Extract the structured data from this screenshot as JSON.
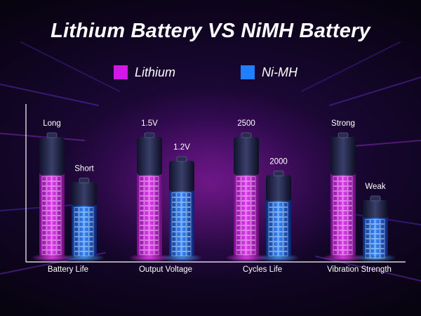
{
  "title": "Lithium Battery VS NiMH Battery",
  "legend": [
    {
      "label": "Lithium",
      "color": "#d018e8"
    },
    {
      "label": "Ni-MH",
      "color": "#1f7fff"
    }
  ],
  "chart_data": {
    "type": "bar",
    "title": "Lithium Battery VS NiMH Battery",
    "categories": [
      "Battery Life",
      "Output Voltage",
      "Cycles Life",
      "Vibration Strength"
    ],
    "series": [
      {
        "name": "Lithium",
        "labels": [
          "Long",
          "1.5V",
          "2500",
          "Strong"
        ],
        "values": [
          1.0,
          1.0,
          1.0,
          1.0
        ]
      },
      {
        "name": "Ni-MH",
        "labels": [
          "Short",
          "1.2V",
          "2000",
          "Weak"
        ],
        "values": [
          0.62,
          0.8,
          0.68,
          0.47
        ]
      }
    ],
    "legend_position": "top",
    "grid": false
  }
}
